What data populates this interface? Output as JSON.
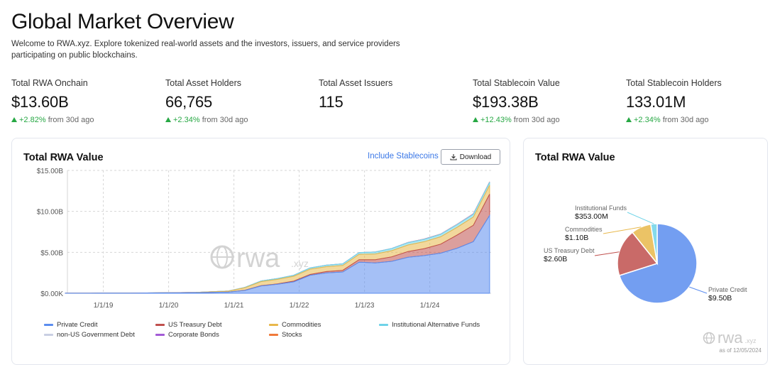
{
  "header": {
    "title": "Global Market Overview",
    "intro": "Welcome to RWA.xyz. Explore tokenized real-world assets and the investors, issuers, and service providers participating on public blockchains."
  },
  "stats": [
    {
      "label": "Total RWA Onchain",
      "value": "$13.60B",
      "change": "+2.82%",
      "suffix": "from 30d ago"
    },
    {
      "label": "Total Asset Holders",
      "value": "66,765",
      "change": "+2.34%",
      "suffix": "from 30d ago"
    },
    {
      "label": "Total Asset Issuers",
      "value": "115",
      "change": "",
      "suffix": ""
    },
    {
      "label": "Total Stablecoin Value",
      "value": "$193.38B",
      "change": "+12.43%",
      "suffix": "from 30d ago"
    },
    {
      "label": "Total Stablecoin Holders",
      "value": "133.01M",
      "change": "+2.34%",
      "suffix": "from 30d ago"
    }
  ],
  "left_card": {
    "title": "Total RWA Value",
    "include_link": "Include Stablecoins",
    "download_label": "Download",
    "watermark": "rwa",
    "watermark_suffix": ".xyz"
  },
  "right_card": {
    "title": "Total RWA Value",
    "watermark": "rwa",
    "watermark_suffix": ".xyz",
    "as_of": "as of 12/05/2024"
  },
  "colors": {
    "private_credit": "#5b8def",
    "us_treasury": "#c0504d",
    "commodities": "#e8b84b",
    "institutional_funds": "#6fd3e8",
    "non_us_gov": "#c9cfe3",
    "corporate_bonds": "#a35bd6",
    "stocks": "#f07a3a"
  },
  "chart_data": [
    {
      "type": "area",
      "stacked": true,
      "x": [
        "2018-06",
        "2018-12",
        "2019-06",
        "2019-12",
        "2020-06",
        "2020-12",
        "2021-03",
        "2021-06",
        "2021-09",
        "2021-12",
        "2022-03",
        "2022-06",
        "2022-09",
        "2022-12",
        "2023-03",
        "2023-06",
        "2023-09",
        "2023-12",
        "2024-03",
        "2024-06",
        "2024-09",
        "2024-12"
      ],
      "x_ticks": [
        "1/1/19",
        "1/1/20",
        "1/1/21",
        "1/1/22",
        "1/1/23",
        "1/1/24"
      ],
      "y_ticks": [
        "$0.00K",
        "$5.00B",
        "$10.00B",
        "$15.00B"
      ],
      "ylim": [
        0,
        15
      ],
      "y_unit": "B",
      "grid": true,
      "legend_position": "bottom",
      "series": [
        {
          "name": "Private Credit",
          "color_key": "private_credit",
          "values": [
            0.01,
            0.02,
            0.03,
            0.05,
            0.08,
            0.15,
            0.35,
            0.9,
            1.1,
            1.4,
            2.2,
            2.5,
            2.6,
            3.8,
            3.7,
            3.9,
            4.4,
            4.6,
            4.9,
            5.5,
            6.3,
            9.5
          ]
        },
        {
          "name": "US Treasury Debt",
          "color_key": "us_treasury",
          "values": [
            0.0,
            0.0,
            0.0,
            0.0,
            0.0,
            0.01,
            0.02,
            0.03,
            0.05,
            0.08,
            0.1,
            0.15,
            0.2,
            0.3,
            0.4,
            0.55,
            0.7,
            0.85,
            1.1,
            1.6,
            2.0,
            2.6
          ]
        },
        {
          "name": "Commodities",
          "color_key": "commodities",
          "values": [
            0.0,
            0.0,
            0.0,
            0.01,
            0.02,
            0.1,
            0.3,
            0.5,
            0.55,
            0.6,
            0.65,
            0.6,
            0.6,
            0.65,
            0.7,
            0.75,
            0.8,
            0.85,
            0.9,
            0.95,
            1.0,
            1.1
          ]
        },
        {
          "name": "Institutional Alternative Funds",
          "color_key": "institutional_funds",
          "values": [
            0.0,
            0.0,
            0.0,
            0.0,
            0.01,
            0.02,
            0.05,
            0.08,
            0.1,
            0.12,
            0.15,
            0.18,
            0.2,
            0.22,
            0.24,
            0.26,
            0.28,
            0.29,
            0.3,
            0.32,
            0.34,
            0.35
          ]
        },
        {
          "name": "non-US Government Debt",
          "color_key": "non_us_gov",
          "values": [
            0,
            0,
            0,
            0,
            0,
            0,
            0,
            0,
            0,
            0,
            0,
            0,
            0,
            0,
            0.01,
            0.01,
            0.02,
            0.02,
            0.02,
            0.03,
            0.03,
            0.03
          ]
        },
        {
          "name": "Corporate Bonds",
          "color_key": "corporate_bonds",
          "values": [
            0,
            0,
            0,
            0,
            0,
            0,
            0,
            0,
            0,
            0,
            0,
            0,
            0,
            0,
            0,
            0,
            0.01,
            0.01,
            0.01,
            0.02,
            0.02,
            0.02
          ]
        },
        {
          "name": "Stocks",
          "color_key": "stocks",
          "values": [
            0,
            0,
            0,
            0,
            0,
            0,
            0,
            0,
            0,
            0,
            0,
            0,
            0,
            0,
            0,
            0,
            0,
            0.01,
            0.01,
            0.01,
            0.01,
            0.01
          ]
        }
      ]
    },
    {
      "type": "pie",
      "slices": [
        {
          "label": "Private Credit",
          "value_label": "$9.50B",
          "value": 9.5,
          "color_key": "private_credit"
        },
        {
          "label": "US Treasury Debt",
          "value_label": "$2.60B",
          "value": 2.6,
          "color_key": "us_treasury"
        },
        {
          "label": "Commodities",
          "value_label": "$1.10B",
          "value": 1.1,
          "color_key": "commodities"
        },
        {
          "label": "Institutional Funds",
          "value_label": "$353.00M",
          "value": 0.353,
          "color_key": "institutional_funds"
        }
      ]
    }
  ]
}
